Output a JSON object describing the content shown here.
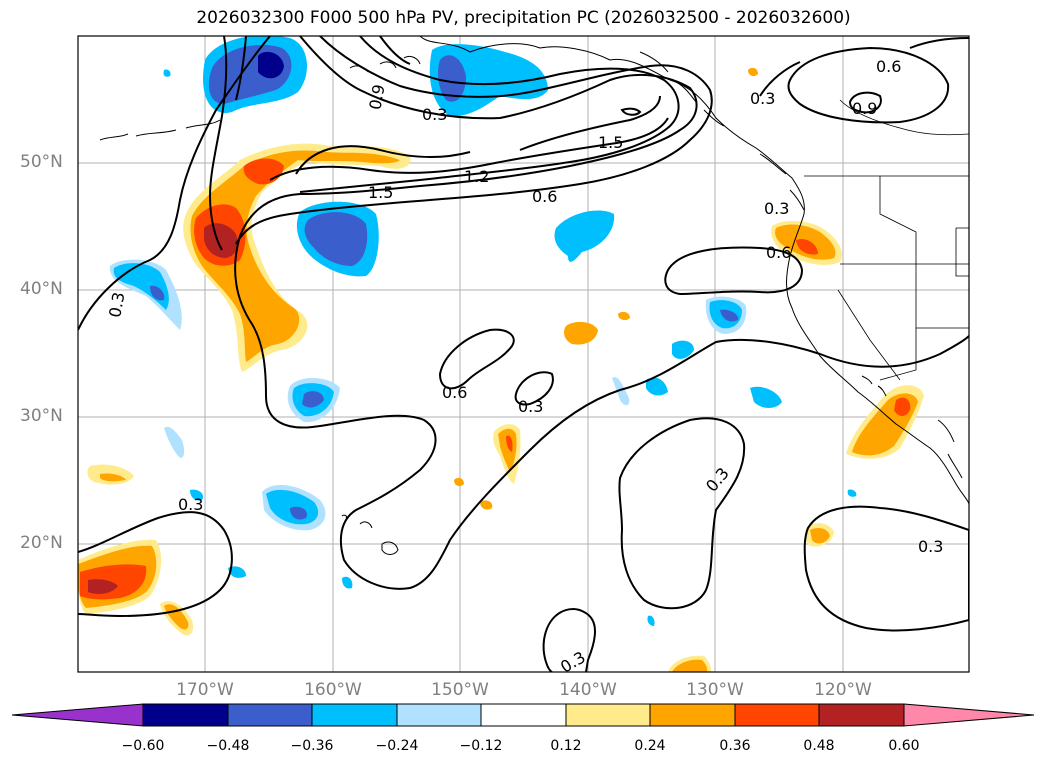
{
  "title": "2026032300 F000 500 hPa PV, precipitation PC (2026032500 - 2026032600)",
  "lat_labels": [
    "50°N",
    "40°N",
    "30°N",
    "20°N"
  ],
  "lon_labels": [
    "170°W",
    "160°W",
    "150°W",
    "140°W",
    "130°W",
    "120°W"
  ],
  "colorbar": {
    "ticks": [
      "−0.60",
      "−0.48",
      "−0.36",
      "−0.24",
      "−0.12",
      "0.12",
      "0.24",
      "0.36",
      "0.48",
      "0.60"
    ],
    "colors": [
      "#9932cc",
      "#00008b",
      "#3a5fcd",
      "#00bfff",
      "#b0e2ff",
      "#ffffff",
      "#ffeb8b",
      "#ffa500",
      "#ff4500",
      "#b22222",
      "#ff88aa"
    ]
  },
  "contour_labels": [
    "0.9",
    "0.3",
    "0.6",
    "0.9",
    "1.5",
    "1.2",
    "1.5",
    "0.6",
    "0.3",
    "0.6",
    "0.3",
    "0.6",
    "0.3",
    "0.3",
    "0.3",
    "0.3",
    "0.3"
  ],
  "colors": {
    "frame": "#000000",
    "grid": "#b0b0b0",
    "contour": "#000000"
  }
}
